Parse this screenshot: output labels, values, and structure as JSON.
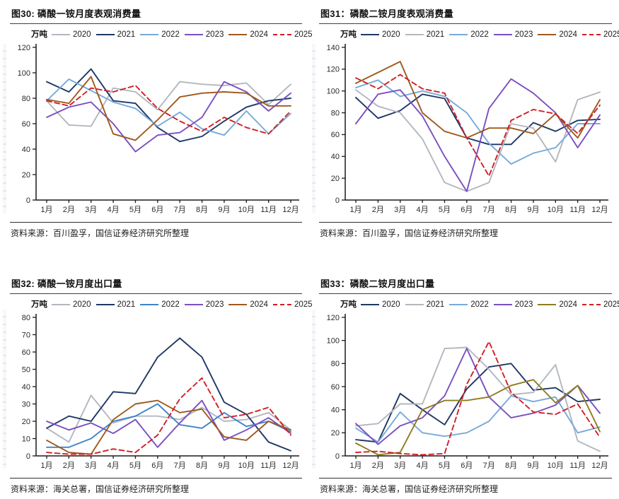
{
  "months": [
    "1月",
    "2月",
    "3月",
    "4月",
    "5月",
    "6月",
    "7月",
    "8月",
    "9月",
    "10月",
    "11月",
    "12月"
  ],
  "chart_data": [
    {
      "id": "fig30",
      "type": "line",
      "title": "图30: 磷酸一铵月度表观消费量",
      "unit": "万吨",
      "source": "资料来源：百川盈孚，国信证券经济研究所整理",
      "x": [
        "1月",
        "2月",
        "3月",
        "4月",
        "5月",
        "6月",
        "7月",
        "8月",
        "9月",
        "10月",
        "11月",
        "12月"
      ],
      "ylim": [
        0,
        120
      ],
      "ytick": 20,
      "grid": false,
      "legend_position": "top",
      "series": [
        {
          "name": "2020",
          "color": "#b3b7bf",
          "dashed": false,
          "values": [
            78,
            59,
            58,
            88,
            85,
            71,
            93,
            91,
            90,
            92,
            75,
            91
          ]
        },
        {
          "name": "2021",
          "color": "#1f3864",
          "dashed": false,
          "values": [
            93,
            85,
            103,
            78,
            76,
            57,
            46,
            50,
            62,
            73,
            78,
            80
          ]
        },
        {
          "name": "2022",
          "color": "#77aad9",
          "dashed": false,
          "values": [
            78,
            95,
            86,
            77,
            72,
            58,
            69,
            56,
            51,
            70,
            52,
            68
          ]
        },
        {
          "name": "2023",
          "color": "#7b4fc0",
          "dashed": false,
          "values": [
            65,
            73,
            77,
            60,
            38,
            51,
            53,
            65,
            93,
            85,
            70,
            84
          ]
        },
        {
          "name": "2024",
          "color": "#9e5a1e",
          "dashed": false,
          "values": [
            79,
            76,
            97,
            52,
            47,
            63,
            81,
            84,
            85,
            84,
            74,
            74
          ]
        },
        {
          "name": "2025",
          "color": "#d01f26",
          "dashed": true,
          "values": [
            78,
            74,
            88,
            85,
            90,
            72,
            62,
            54,
            65,
            57,
            52,
            70
          ]
        }
      ]
    },
    {
      "id": "fig31",
      "type": "line",
      "title": "图31：磷酸二铵月度表观消费量",
      "unit": "万吨",
      "source": "资料来源：百川盈孚，国信证券经济研究所整理",
      "x": [
        "1月",
        "2月",
        "3月",
        "4月",
        "5月",
        "6月",
        "7月",
        "8月",
        "9月",
        "10月",
        "11月",
        "12月"
      ],
      "ylim": [
        0,
        140
      ],
      "ytick": 20,
      "grid": false,
      "legend_position": "top",
      "series": [
        {
          "name": "2020",
          "color": "#1f3864",
          "dashed": false,
          "values": [
            94,
            75,
            82,
            97,
            93,
            57,
            51,
            51,
            71,
            63,
            73,
            74
          ]
        },
        {
          "name": "2021",
          "color": "#b3b7bf",
          "dashed": false,
          "values": [
            101,
            86,
            80,
            56,
            16,
            8,
            16,
            70,
            66,
            35,
            92,
            99
          ]
        },
        {
          "name": "2022",
          "color": "#77aad9",
          "dashed": false,
          "values": [
            103,
            110,
            95,
            100,
            95,
            80,
            52,
            33,
            43,
            48,
            70,
            70
          ]
        },
        {
          "name": "2023",
          "color": "#7b4fc0",
          "dashed": false,
          "values": [
            70,
            97,
            101,
            77,
            40,
            8,
            84,
            111,
            98,
            80,
            48,
            78
          ]
        },
        {
          "name": "2024",
          "color": "#9e5a1e",
          "dashed": false,
          "values": [
            107,
            117,
            127,
            80,
            63,
            57,
            66,
            66,
            61,
            79,
            57,
            92
          ]
        },
        {
          "name": "2025",
          "color": "#d01f26",
          "dashed": true,
          "values": [
            112,
            102,
            115,
            102,
            98,
            57,
            22,
            73,
            83,
            79,
            61,
            87
          ]
        }
      ]
    },
    {
      "id": "fig32",
      "type": "line",
      "title": "图32: 磷酸一铵月度出口量",
      "unit": "万吨",
      "source": "资料来源：海关总署，国信证券经济研究所整理",
      "x": [
        "1月",
        "2月",
        "3月",
        "4月",
        "5月",
        "6月",
        "7月",
        "8月",
        "9月",
        "10月",
        "11月",
        "12月"
      ],
      "ylim": [
        0,
        80
      ],
      "ytick": 10,
      "grid": false,
      "legend_position": "top",
      "series": [
        {
          "name": "2020",
          "color": "#b3b7bf",
          "dashed": false,
          "values": [
            16,
            8,
            35,
            19,
            23,
            23,
            21,
            28,
            20,
            21,
            25,
            15
          ]
        },
        {
          "name": "2021",
          "color": "#1f3864",
          "dashed": false,
          "values": [
            16,
            23,
            20,
            37,
            36,
            57,
            68,
            57,
            31,
            24,
            8,
            3
          ]
        },
        {
          "name": "2022",
          "color": "#3d85c8",
          "dashed": false,
          "values": [
            5,
            5,
            10,
            20,
            23,
            30,
            18,
            16,
            25,
            17,
            20,
            14
          ]
        },
        {
          "name": "2023",
          "color": "#7b4fc0",
          "dashed": false,
          "values": [
            20,
            15,
            19,
            13,
            21,
            5,
            19,
            32,
            9,
            15,
            22,
            13
          ]
        },
        {
          "name": "2024",
          "color": "#9e5a1e",
          "dashed": false,
          "values": [
            9,
            2,
            1,
            21,
            30,
            32,
            25,
            27,
            11,
            9,
            20,
            15
          ]
        },
        {
          "name": "2025",
          "color": "#d01f26",
          "dashed": true,
          "values": [
            2,
            1,
            1,
            4,
            2,
            12,
            33,
            45,
            22,
            24,
            28,
            12
          ]
        }
      ]
    },
    {
      "id": "fig33",
      "type": "line",
      "title": "图33：磷酸二铵月度出口量",
      "unit": "万吨",
      "source": "资料来源：海关总署，国信证券经济研究所整理",
      "x": [
        "1月",
        "2月",
        "3月",
        "4月",
        "5月",
        "6月",
        "7月",
        "8月",
        "9月",
        "10月",
        "11月",
        "12月"
      ],
      "ylim": [
        0,
        120
      ],
      "ytick": 20,
      "grid": false,
      "legend_position": "top",
      "series": [
        {
          "name": "2020",
          "color": "#1f3864",
          "dashed": false,
          "values": [
            14,
            12,
            54,
            40,
            27,
            58,
            77,
            80,
            57,
            59,
            47,
            49
          ]
        },
        {
          "name": "2021",
          "color": "#b3b7bf",
          "dashed": false,
          "values": [
            26,
            28,
            45,
            45,
            93,
            94,
            75,
            53,
            55,
            79,
            13,
            4
          ]
        },
        {
          "name": "2022",
          "color": "#77aad9",
          "dashed": false,
          "values": [
            24,
            12,
            38,
            20,
            17,
            20,
            30,
            52,
            47,
            51,
            20,
            25
          ]
        },
        {
          "name": "2023",
          "color": "#7b4fc0",
          "dashed": false,
          "values": [
            28,
            10,
            26,
            33,
            52,
            93,
            51,
            33,
            37,
            44,
            61,
            37
          ]
        },
        {
          "name": "2024",
          "color": "#8e7d20",
          "dashed": false,
          "values": [
            11,
            1,
            3,
            40,
            48,
            48,
            51,
            61,
            66,
            46,
            61,
            21
          ]
        },
        {
          "name": "2025",
          "color": "#d01f26",
          "dashed": true,
          "values": [
            3,
            4,
            2,
            1,
            2,
            62,
            99,
            55,
            38,
            36,
            45,
            16
          ]
        }
      ]
    }
  ]
}
